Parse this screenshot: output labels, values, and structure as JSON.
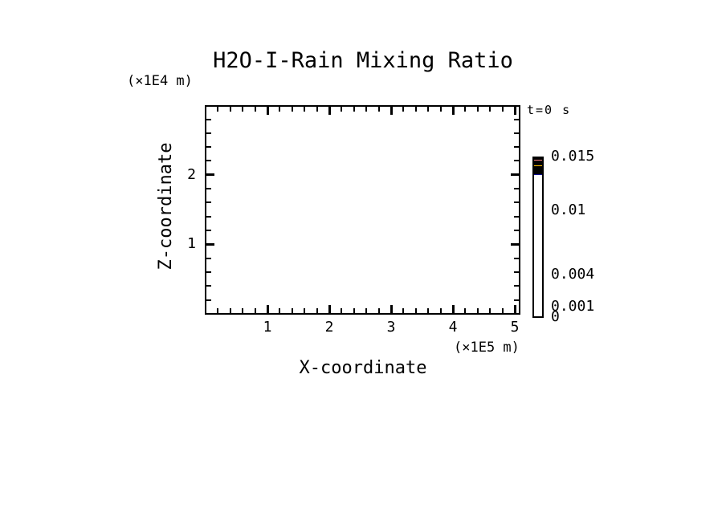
{
  "title": "H2O-I-Rain Mixing Ratio",
  "annotations": {
    "time_label": "t=0 s"
  },
  "axes": {
    "x": {
      "label": "X-coordinate",
      "unit": "(×1E5 m)",
      "min": 0,
      "max": 5.09,
      "major_ticks": [
        1,
        2,
        3,
        4,
        5
      ],
      "minor_step": 0.2
    },
    "y": {
      "label": "Z-coordinate",
      "unit": "(×1E4 m)",
      "min": 0,
      "max": 3,
      "major_ticks": [
        1,
        2
      ],
      "minor_step": 0.2
    }
  },
  "colorbar": {
    "max": 0.015,
    "levels": [
      0,
      0.001,
      0.002,
      0.003,
      0.004,
      0.006,
      0.008,
      0.01,
      0.012,
      0.014,
      0.015
    ],
    "colors": [
      "#000090",
      "#0020F0",
      "#00E0F8",
      "#00F855",
      "#F8F800",
      "#FFC000",
      "#FFA000",
      "#F81010",
      "#F88080",
      "#F8C0C8"
    ],
    "labels": [
      {
        "value": 0.015,
        "text": "0.015"
      },
      {
        "value": 0.01,
        "text": "0.01"
      },
      {
        "value": 0.004,
        "text": "0.004"
      },
      {
        "value": 0.001,
        "text": "0.001"
      },
      {
        "value": 0,
        "text": "0"
      }
    ]
  },
  "chart_data": {
    "type": "heatmap",
    "title": "H2O-I-Rain Mixing Ratio",
    "time_annotation": "t=0 s",
    "xlabel": "X-coordinate",
    "x_unit": "(×1E5 m)",
    "ylabel": "Z-coordinate",
    "y_unit": "(×1E4 m)",
    "xlim": [
      0,
      5.09
    ],
    "ylim": [
      0,
      3
    ],
    "x_major_ticks": [
      1,
      2,
      3,
      4,
      5
    ],
    "y_major_ticks": [
      1,
      2
    ],
    "grid": false,
    "legend_position": "right",
    "colorbar_levels": [
      0,
      0.001,
      0.002,
      0.003,
      0.004,
      0.006,
      0.008,
      0.01,
      0.012,
      0.014,
      0.015
    ],
    "colorbar_colors": [
      "#000090",
      "#0020F0",
      "#00E0F8",
      "#00F855",
      "#F8F800",
      "#FFC000",
      "#FFA000",
      "#F81010",
      "#F88080",
      "#F8C0C8"
    ],
    "colorbar_labeled_values": [
      0,
      0.001,
      0.004,
      0.01,
      0.015
    ],
    "values": [],
    "note": "field is empty at t=0 s; no contour/fill data plotted inside axes"
  },
  "colors": {
    "background": "#ffffff",
    "foreground": "#000000"
  }
}
